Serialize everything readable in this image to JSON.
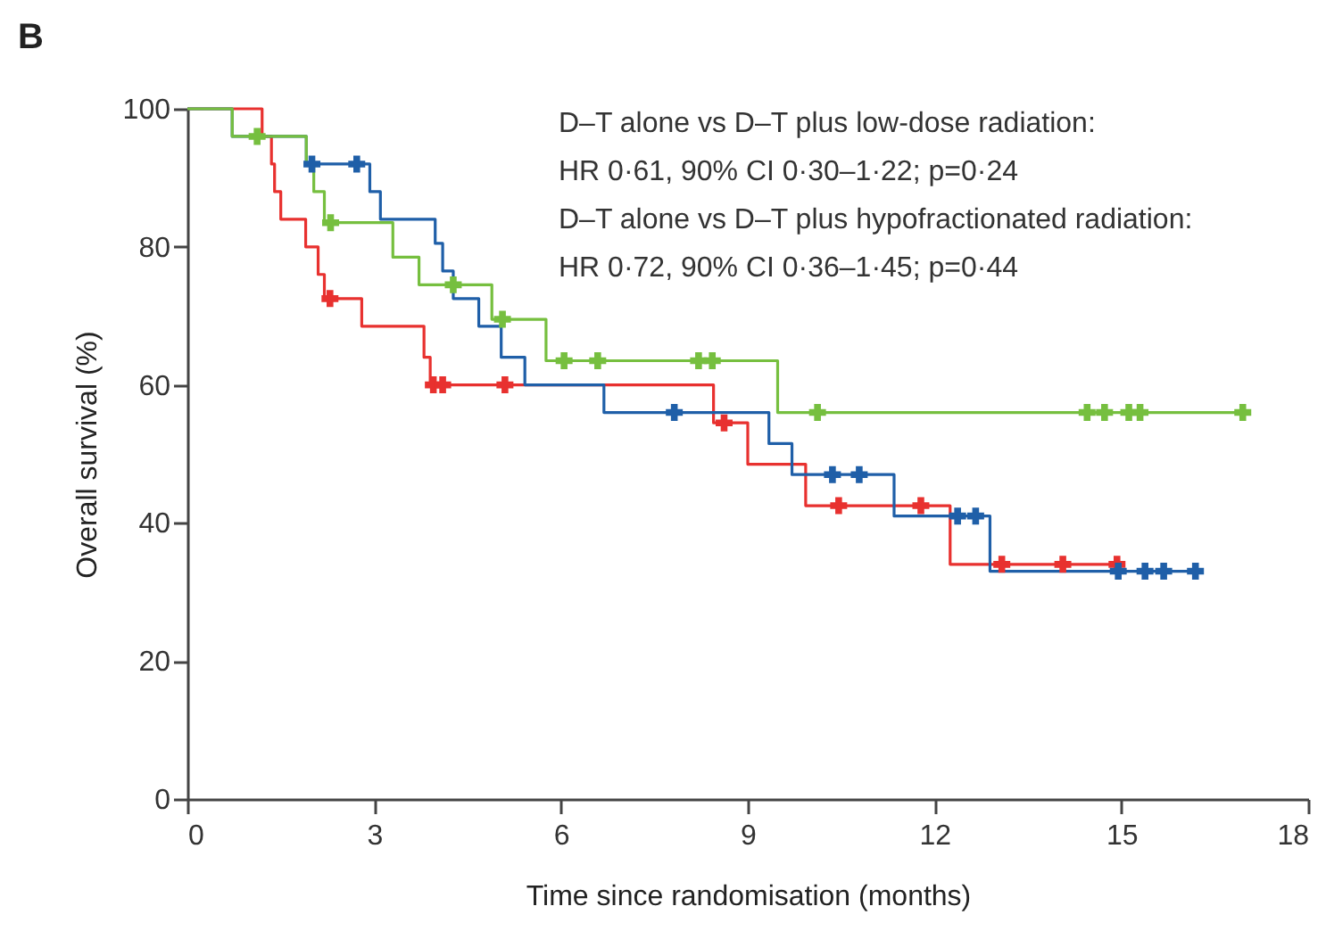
{
  "chart_data": {
    "type": "step",
    "title": "B",
    "xlabel": "Time since randomisation (months)",
    "ylabel": "Overall survival (%)",
    "xlim": [
      0,
      18
    ],
    "xticks": [
      0,
      3,
      6,
      9,
      12,
      15,
      18
    ],
    "ylim": [
      0,
      100
    ],
    "yticks": [
      0,
      20,
      40,
      60,
      80,
      100
    ],
    "grid": false,
    "annotations": [
      "D–T alone vs D–T plus low-dose radiation:",
      "HR 0·61, 90% CI 0·30–1·22; p=0·24",
      "D–T alone vs D–T plus hypofractionated radiation:",
      "HR 0·72, 90% CI 0·36–1·45; p=0·44"
    ],
    "series": [
      {
        "color": "#e8312f",
        "x": [
          0,
          1.2,
          1.35,
          1.4,
          1.5,
          1.9,
          2.1,
          2.2,
          2.8,
          3.8,
          3.9,
          8.45,
          9.0,
          9.93,
          12.25,
          14.93
        ],
        "values": [
          100,
          96,
          92,
          88,
          84,
          80,
          76,
          72.5,
          68.5,
          64,
          60,
          54.5,
          48.5,
          42.5,
          34,
          34
        ]
      },
      {
        "color": "#1f5fa8",
        "x": [
          0,
          0.72,
          1.91,
          2.93,
          3.1,
          3.98,
          4.1,
          4.27,
          4.68,
          5.04,
          5.42,
          6.69,
          9.34,
          9.71,
          11.35,
          12.89,
          16.19
        ],
        "values": [
          100,
          96,
          92,
          88,
          84,
          80.5,
          76.5,
          72.5,
          68.5,
          64,
          60,
          56,
          51.5,
          47,
          41,
          33,
          33
        ]
      },
      {
        "color": "#76bf3f",
        "x": [
          0,
          0.72,
          1.91,
          2.03,
          2.2,
          3.3,
          3.72,
          4.89,
          5.76,
          9.48,
          16.95
        ],
        "values": [
          100,
          96,
          92,
          88,
          83.5,
          78.5,
          74.5,
          69.5,
          63.5,
          56,
          56
        ]
      },
      {
        "type": "scatter",
        "marker": "cross",
        "color": "#e8312f",
        "x": [
          2.29,
          3.95,
          4.1,
          5.1,
          8.62,
          10.46,
          11.78,
          13.08,
          14.06,
          14.93
        ],
        "values": [
          72.5,
          60,
          60,
          60,
          54.5,
          42.5,
          42.5,
          34,
          34,
          34
        ]
      },
      {
        "type": "scatter",
        "marker": "cross",
        "color": "#1f5fa8",
        "x": [
          2.0,
          2.72,
          7.82,
          10.36,
          10.79,
          12.37,
          12.66,
          14.95,
          15.38,
          15.68,
          16.19
        ],
        "values": [
          92,
          92,
          56,
          47,
          47,
          41,
          41,
          33,
          33,
          33,
          33
        ]
      },
      {
        "type": "scatter",
        "marker": "cross",
        "color": "#76bf3f",
        "x": [
          1.12,
          2.3,
          4.27,
          5.06,
          6.05,
          6.59,
          8.21,
          8.43,
          10.12,
          14.45,
          14.73,
          15.12,
          15.3,
          16.95
        ],
        "values": [
          96,
          83.5,
          74.5,
          69.5,
          63.5,
          63.5,
          63.5,
          63.5,
          56,
          56,
          56,
          56,
          56,
          56
        ]
      }
    ]
  }
}
